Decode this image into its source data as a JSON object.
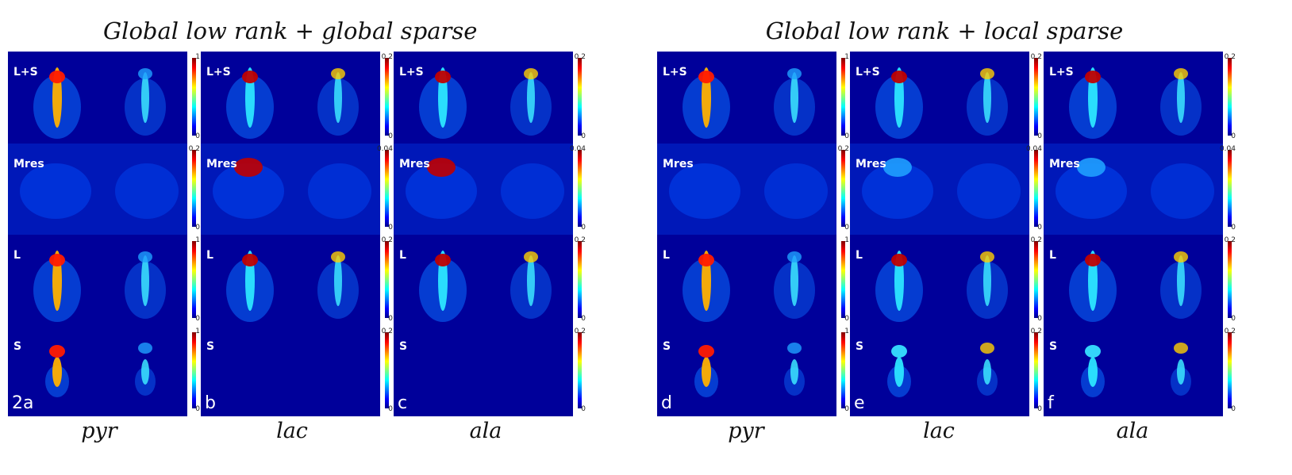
{
  "figure": {
    "groups": [
      {
        "title": "Global low rank + global sparse",
        "panels": [
          {
            "letter": "2a",
            "metabolite": "pyr",
            "scales": [
              "1",
              "0.2",
              "1",
              "1"
            ],
            "mins": [
              "0",
              "0",
              "0",
              "0"
            ]
          },
          {
            "letter": "b",
            "metabolite": "lac",
            "scales": [
              "0.2",
              "0.04",
              "0.2",
              "0.2"
            ],
            "mins": [
              "0",
              "0",
              "0",
              "0"
            ]
          },
          {
            "letter": "c",
            "metabolite": "ala",
            "scales": [
              "0.2",
              "0.04",
              "0.2",
              "0.2"
            ],
            "mins": [
              "0",
              "0",
              "0",
              "0"
            ]
          }
        ]
      },
      {
        "title": "Global low rank + local sparse",
        "panels": [
          {
            "letter": "d",
            "metabolite": "pyr",
            "scales": [
              "1",
              "0.2",
              "1",
              "1"
            ],
            "mins": [
              "0",
              "0",
              "0",
              "0"
            ]
          },
          {
            "letter": "e",
            "metabolite": "lac",
            "scales": [
              "0.2",
              "0.04",
              "0.2",
              "0.2"
            ],
            "mins": [
              "0",
              "0",
              "0",
              "0"
            ]
          },
          {
            "letter": "f",
            "metabolite": "ala",
            "scales": [
              "0.2",
              "0.04",
              "0.2",
              "0.2"
            ],
            "mins": [
              "0",
              "0",
              "0",
              "0"
            ]
          }
        ]
      }
    ],
    "row_labels": [
      "L+S",
      "Mres",
      "L",
      "S"
    ],
    "colormap": "jet",
    "colors": {
      "background": "#00008f",
      "label": "#ffffff"
    }
  }
}
